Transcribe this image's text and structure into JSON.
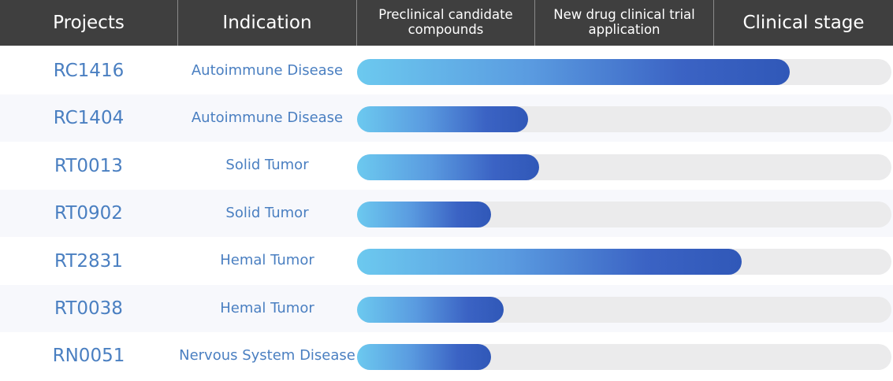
{
  "header": {
    "projects": "Projects",
    "indication": "Indication",
    "stage1": "Preclinical candidate compounds",
    "stage2": "New drug clinical trial application",
    "stage3": "Clinical stage"
  },
  "chart_data": {
    "type": "bar",
    "orientation": "horizontal",
    "categories": [
      "RC1416",
      "RC1404",
      "RT0013",
      "RT0902",
      "RT2831",
      "RT0038",
      "RN0051"
    ],
    "indications": [
      "Autoimmune Disease",
      "Autoimmune Disease",
      "Solid Tumor",
      "Solid Tumor",
      "Hemal Tumor",
      "Hemal Tumor",
      "Nervous System Disease"
    ],
    "stages": [
      "Preclinical candidate compounds",
      "New drug clinical trial application",
      "Clinical stage"
    ],
    "values": [
      0.81,
      0.32,
      0.34,
      0.25,
      0.72,
      0.275,
      0.25
    ],
    "xlim": [
      0,
      1
    ],
    "grid": false,
    "colors": {
      "bar_start": "#6cc9ef",
      "bar_end": "#3058b8",
      "track": "#ebebec",
      "header": "#3f3f3f",
      "text": "#4a7fc1"
    }
  }
}
